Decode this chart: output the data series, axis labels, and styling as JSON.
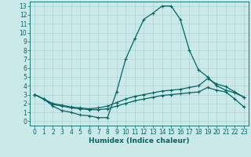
{
  "xlabel": "Humidex (Indice chaleur)",
  "background_color": "#cce9e9",
  "grid_color": "#aad4d4",
  "line_color": "#006666",
  "xlim": [
    -0.5,
    23.5
  ],
  "ylim": [
    -0.5,
    13.5
  ],
  "xticks": [
    0,
    1,
    2,
    3,
    4,
    5,
    6,
    7,
    8,
    9,
    10,
    11,
    12,
    13,
    14,
    15,
    16,
    17,
    18,
    19,
    20,
    21,
    22,
    23
  ],
  "yticks": [
    0,
    1,
    2,
    3,
    4,
    5,
    6,
    7,
    8,
    9,
    10,
    11,
    12,
    13
  ],
  "series1_x": [
    0,
    1,
    2,
    3,
    4,
    5,
    6,
    7,
    8,
    9,
    10,
    11,
    12,
    13,
    14,
    15,
    16,
    17,
    18,
    19,
    20,
    21,
    22,
    23
  ],
  "series1_y": [
    3.0,
    2.5,
    1.7,
    1.2,
    1.0,
    0.7,
    0.6,
    0.4,
    0.4,
    3.3,
    7.0,
    9.3,
    11.5,
    12.2,
    13.0,
    13.0,
    11.5,
    8.0,
    5.8,
    5.0,
    4.0,
    3.5,
    3.2,
    2.7
  ],
  "series2_x": [
    0,
    1,
    2,
    3,
    4,
    5,
    6,
    7,
    8,
    9,
    10,
    11,
    12,
    13,
    14,
    15,
    16,
    17,
    18,
    19,
    20,
    21,
    22,
    23
  ],
  "series2_y": [
    3.0,
    2.5,
    2.0,
    1.8,
    1.6,
    1.5,
    1.4,
    1.5,
    1.7,
    2.1,
    2.5,
    2.8,
    3.0,
    3.2,
    3.4,
    3.5,
    3.6,
    3.8,
    4.0,
    4.8,
    4.2,
    3.9,
    3.3,
    2.7
  ],
  "series3_x": [
    0,
    1,
    2,
    3,
    4,
    5,
    6,
    7,
    8,
    9,
    10,
    11,
    12,
    13,
    14,
    15,
    16,
    17,
    18,
    19,
    20,
    21,
    22,
    23
  ],
  "series3_y": [
    3.0,
    2.5,
    1.9,
    1.7,
    1.5,
    1.4,
    1.3,
    1.3,
    1.4,
    1.7,
    2.0,
    2.3,
    2.5,
    2.7,
    2.9,
    3.0,
    3.1,
    3.2,
    3.3,
    3.8,
    3.5,
    3.3,
    2.5,
    1.6
  ],
  "tick_fontsize": 5.5,
  "xlabel_fontsize": 6.5,
  "marker": "+",
  "markersize": 2.5,
  "linewidth": 0.9
}
